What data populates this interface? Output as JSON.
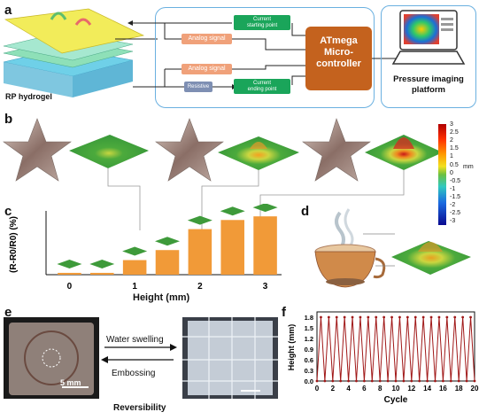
{
  "panels": {
    "a": "a",
    "b": "b",
    "c": "c",
    "d": "d",
    "e": "e",
    "f": "f"
  },
  "panel_a": {
    "hydrogel_label": "RP hydrogel",
    "current_start": "Current\nstarting point",
    "current_end": "Current\nending point",
    "analog_1": "Analog signal",
    "analog_2": "Analog signal",
    "resistive": "Resistive",
    "mcu": "ATmega\nMicro-\ncontroller",
    "platform": "Pressure imaging\nplatform"
  },
  "colorbar": {
    "ticks": [
      "3",
      "2.5",
      "2",
      "1.5",
      "1",
      "0.5",
      "0",
      "-0.5",
      "-1",
      "-1.5",
      "-2",
      "-2.5",
      "-3"
    ],
    "unit": "mm"
  },
  "chart_data": {
    "type": "bar",
    "categories": [
      "0",
      "0.5",
      "1",
      "1.5",
      "2",
      "2.5",
      "3"
    ],
    "values": [
      1,
      1,
      8,
      13.5,
      25,
      30,
      32
    ],
    "ylabel": "(R-R0/R0) (%)",
    "xlabel": "Height (mm)",
    "xticks": [
      "0",
      "1",
      "2",
      "3"
    ],
    "color": "#f19a38"
  },
  "panel_e": {
    "scale1": "5 mm",
    "swelling": "Water swelling",
    "embossing": "Embossing",
    "caption": "Reversibility"
  },
  "panel_f": {
    "ylabel": "Height (mm)",
    "xlabel": "Cycle",
    "yticks": [
      "0.0",
      "0.3",
      "0.6",
      "0.9",
      "1.2",
      "1.5",
      "1.8"
    ],
    "xticks": [
      "0",
      "2",
      "4",
      "6",
      "8",
      "10",
      "12",
      "14",
      "16",
      "18",
      "20"
    ],
    "high": 1.8,
    "low": 0.0,
    "color": "#a01818"
  }
}
